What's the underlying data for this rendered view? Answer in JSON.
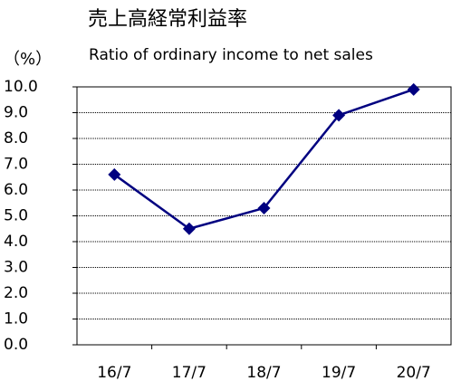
{
  "chart_data": {
    "type": "line",
    "title": "売上高経常利益率",
    "subtitle": "Ratio of ordinary income to net sales",
    "y_label": "（%）",
    "categories": [
      "16/7",
      "17/7",
      "18/7",
      "19/7",
      "20/7"
    ],
    "series": [
      {
        "name": "Ratio of ordinary income to net sales",
        "color": "#000080",
        "values": [
          6.6,
          4.5,
          5.3,
          8.9,
          9.9
        ]
      }
    ],
    "ylim": [
      0,
      10
    ],
    "yticks": [
      {
        "value": 0,
        "label": "0.0"
      },
      {
        "value": 1,
        "label": "1.0"
      },
      {
        "value": 2,
        "label": "2.0"
      },
      {
        "value": 3,
        "label": "3.0"
      },
      {
        "value": 4,
        "label": "4.0"
      },
      {
        "value": 5,
        "label": "5.0"
      },
      {
        "value": 6,
        "label": "6.0"
      },
      {
        "value": 7,
        "label": "7.0"
      },
      {
        "value": 8,
        "label": "8.0"
      },
      {
        "value": 9,
        "label": "9.0"
      },
      {
        "value": 10,
        "label": "10.0"
      }
    ],
    "grid": true
  }
}
